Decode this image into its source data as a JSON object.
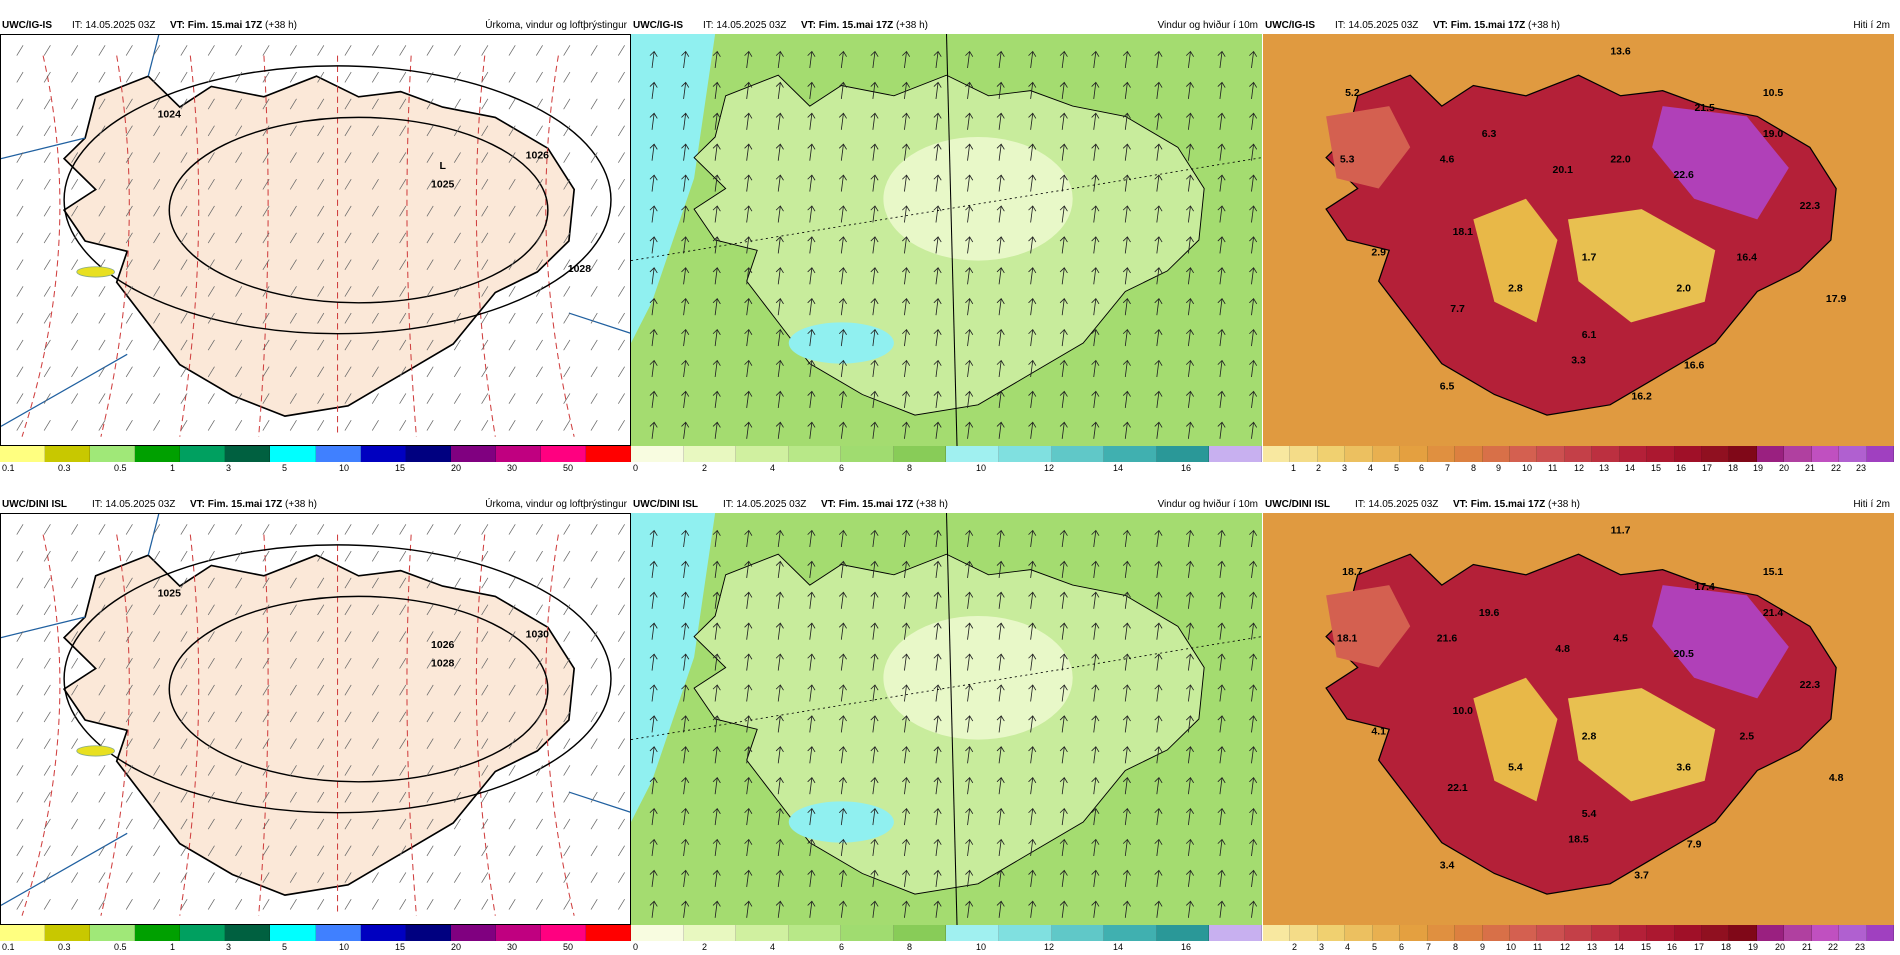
{
  "panels": [
    {
      "id": "p1",
      "model": "UWC/IG-IS",
      "it": "IT: 14.05.2025 03Z",
      "vt_label": "VT:",
      "vt": "Fim. 15.mai 17Z",
      "lead": "(+38 h)",
      "product": "Úrkoma, vindur og loftþrýstingur",
      "kind": "precip",
      "labels": [
        "1024",
        "L",
        "1025",
        "1026",
        "1028"
      ],
      "ticks": [
        "0.1",
        "0.3",
        "0.5",
        "1",
        "3",
        "5",
        "10",
        "15",
        "20",
        "30",
        "50"
      ],
      "colors": [
        "#ffff80",
        "#c8c800",
        "#a0e878",
        "#00a000",
        "#00a060",
        "#006040",
        "#00ffff",
        "#4080ff",
        "#0000c0",
        "#000080",
        "#800080",
        "#c00080",
        "#ff0080",
        "#ff0000"
      ]
    },
    {
      "id": "p2",
      "model": "UWC/IG-IS",
      "it": "IT: 14.05.2025 03Z",
      "vt_label": "VT:",
      "vt": "Fim. 15.mai 17Z",
      "lead": "(+38 h)",
      "product": "Vindur og hviður í 10m",
      "kind": "wind",
      "labels": [],
      "ticks": [
        "0",
        "2",
        "4",
        "6",
        "8",
        "10",
        "12",
        "14",
        "16"
      ],
      "colors": [
        "#f8fce0",
        "#e8f8c0",
        "#d0f0a0",
        "#b8e888",
        "#a0dc70",
        "#88cc58",
        "#a0f0f0",
        "#80e0e0",
        "#60c8c8",
        "#40b0b0",
        "#2a9898",
        "#c8b0f0"
      ]
    },
    {
      "id": "p3",
      "model": "UWC/IG-IS",
      "it": "IT: 14.05.2025 03Z",
      "vt_label": "VT:",
      "vt": "Fim. 15.mai 17Z",
      "lead": "(+38 h)",
      "product": "Hiti í 2m",
      "kind": "temp",
      "labels": [
        "13.6",
        "5.2",
        "10.5",
        "21.5",
        "6.3",
        "5.3",
        "4.6",
        "20.1",
        "22.0",
        "22.6",
        "19.0",
        "22.3",
        "18.1",
        "2.9",
        "2.8",
        "1.7",
        "2.0",
        "16.4",
        "7.7",
        "17.9",
        "6.1",
        "3.3",
        "16.6",
        "6.5",
        "16.2"
      ],
      "ticks": [
        "1",
        "2",
        "3",
        "4",
        "5",
        "6",
        "7",
        "8",
        "9",
        "10",
        "11",
        "12",
        "13",
        "14",
        "15",
        "16",
        "17",
        "18",
        "19",
        "20",
        "21",
        "22",
        "23"
      ],
      "colors": [
        "#f8e8a0",
        "#f4dc88",
        "#f0d070",
        "#ecc060",
        "#e8b050",
        "#e4a040",
        "#e09040",
        "#dc8040",
        "#d87048",
        "#d46050",
        "#cc5050",
        "#c44048",
        "#bc3040",
        "#b42038",
        "#ac1830",
        "#a01028",
        "#901020",
        "#800818",
        "#9a2080",
        "#b040a0",
        "#c050c0",
        "#b060d0",
        "#a040c0"
      ]
    },
    {
      "id": "p4",
      "model": "UWC/DINI ISL",
      "it": "IT: 14.05.2025 03Z",
      "vt_label": "VT:",
      "vt": "Fim. 15.mai 17Z",
      "lead": "(+38 h)",
      "product": "Úrkoma, vindur og loftþrýstingur",
      "kind": "precip",
      "labels": [
        "1025",
        "1026",
        "1028",
        "1030"
      ],
      "ticks": [
        "0.1",
        "0.3",
        "0.5",
        "1",
        "3",
        "5",
        "10",
        "15",
        "20",
        "30",
        "50"
      ],
      "colors": [
        "#ffff80",
        "#c8c800",
        "#a0e878",
        "#00a000",
        "#00a060",
        "#006040",
        "#00ffff",
        "#4080ff",
        "#0000c0",
        "#000080",
        "#800080",
        "#c00080",
        "#ff0080",
        "#ff0000"
      ]
    },
    {
      "id": "p5",
      "model": "UWC/DINI ISL",
      "it": "IT: 14.05.2025 03Z",
      "vt_label": "VT:",
      "vt": "Fim. 15.mai 17Z",
      "lead": "(+38 h)",
      "product": "Vindur og hviður í 10m",
      "kind": "wind",
      "labels": [],
      "ticks": [
        "0",
        "2",
        "4",
        "6",
        "8",
        "10",
        "12",
        "14",
        "16"
      ],
      "colors": [
        "#f8fce0",
        "#e8f8c0",
        "#d0f0a0",
        "#b8e888",
        "#a0dc70",
        "#88cc58",
        "#a0f0f0",
        "#80e0e0",
        "#60c8c8",
        "#40b0b0",
        "#2a9898",
        "#c8b0f0"
      ]
    },
    {
      "id": "p6",
      "model": "UWC/DINI ISL",
      "it": "IT: 14.05.2025 03Z",
      "vt_label": "VT:",
      "vt": "Fim. 15.mai 17Z",
      "lead": "(+38 h)",
      "product": "Hiti í 2m",
      "kind": "temp",
      "labels": [
        "11.7",
        "18.7",
        "15.1",
        "17.4",
        "19.6",
        "18.1",
        "21.6",
        "4.8",
        "4.5",
        "20.5",
        "21.4",
        "22.3",
        "10.0",
        "4.1",
        "5.4",
        "2.8",
        "3.6",
        "2.5",
        "22.1",
        "4.8",
        "5.4",
        "18.5",
        "7.9",
        "3.4",
        "3.7"
      ],
      "ticks": [
        "2",
        "3",
        "4",
        "5",
        "6",
        "7",
        "8",
        "9",
        "10",
        "11",
        "12",
        "13",
        "14",
        "15",
        "16",
        "17",
        "18",
        "19",
        "20",
        "21",
        "22",
        "23"
      ],
      "colors": [
        "#f8e8a0",
        "#f4dc88",
        "#f0d070",
        "#ecc060",
        "#e8b050",
        "#e4a040",
        "#e09040",
        "#dc8040",
        "#d87048",
        "#d46050",
        "#cc5050",
        "#c44048",
        "#bc3040",
        "#b42038",
        "#ac1830",
        "#a01028",
        "#901020",
        "#800818",
        "#9a2080",
        "#b040a0",
        "#c050c0",
        "#b060d0",
        "#a040c0"
      ]
    }
  ]
}
